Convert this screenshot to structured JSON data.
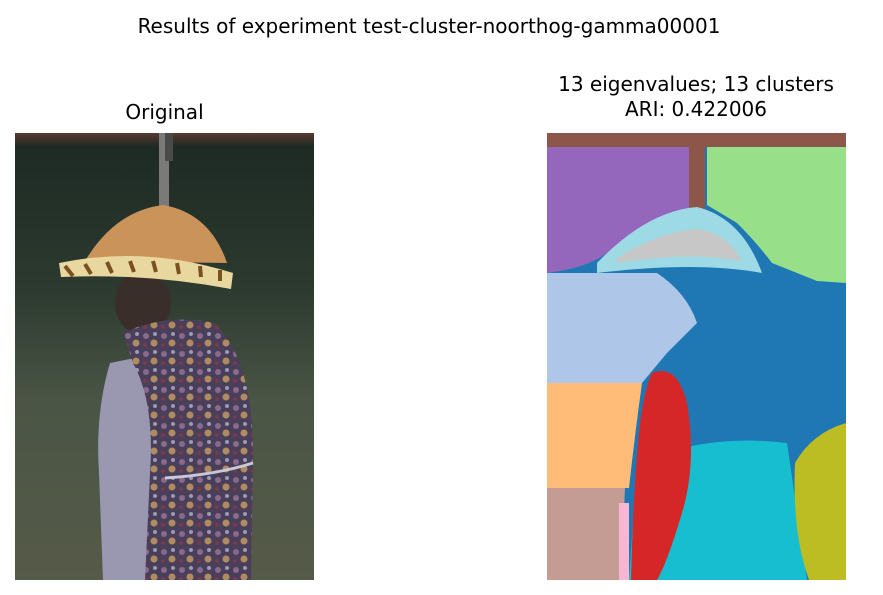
{
  "figure": {
    "suptitle": "Results of experiment test-cluster-noorthog-gamma00001"
  },
  "left_panel": {
    "title": "Original",
    "image_subject": "person-wearing-conical-straw-hat-and-floral-vest"
  },
  "right_panel": {
    "title_line1": "13 eigenvalues; 13 clusters",
    "title_line2": "ARI: 0.422006",
    "image_subject": "segmentation-map-13-clusters"
  },
  "colors": {
    "cluster_brown": "#8c564b",
    "cluster_purple": "#9467bd",
    "cluster_light_green": "#98df8a",
    "cluster_light_blue": "#aec7e8",
    "cluster_blue": "#1f77b4",
    "cluster_orange": "#ffbb78",
    "cluster_red": "#d62728",
    "cluster_cyan": "#17becf",
    "cluster_olive": "#bcbd22",
    "cluster_rosy": "#c49c94",
    "cluster_pink": "#f7b6d2",
    "cluster_sky": "#9edae5",
    "cluster_gray": "#c7c7c7"
  }
}
